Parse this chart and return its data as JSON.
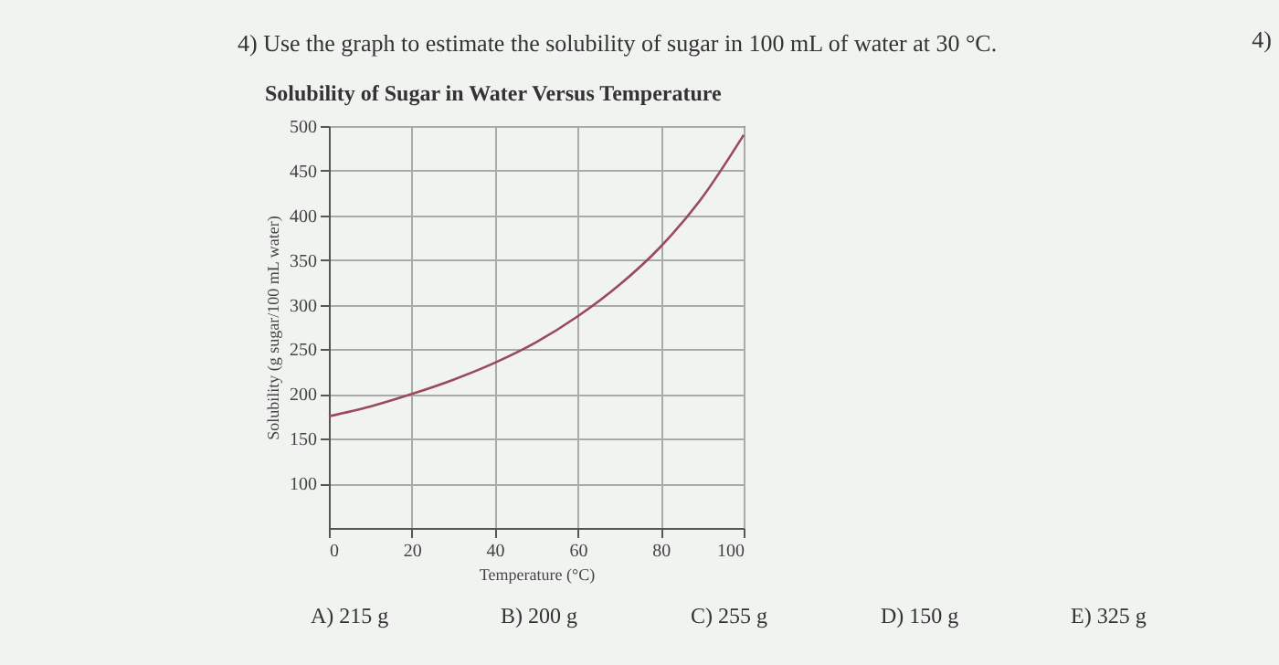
{
  "chart_data": {
    "type": "line",
    "title": "Solubility of Sugar in Water Versus Temperature",
    "xlabel": "Temperature (°C)",
    "ylabel": "Solubility (g sugar/100 mL water)",
    "x": [
      0,
      10,
      20,
      30,
      40,
      50,
      60,
      70,
      80,
      90,
      100
    ],
    "series": [
      {
        "color": "#9a4a5a",
        "values": [
          175,
          186,
          200,
          216,
          235,
          258,
          287,
          322,
          365,
          420,
          490
        ]
      }
    ],
    "xlim": [
      0,
      100
    ],
    "xticks": [
      0,
      20,
      40,
      60,
      80,
      100
    ],
    "ylim": [
      50,
      500
    ],
    "yticks": [
      100,
      150,
      200,
      250,
      300,
      350,
      400,
      450,
      500
    ],
    "grid": true,
    "annotations": [
      "4) Use the graph to estimate the solubility of sugar in 100 mL of water at 30 °C.",
      "4)",
      "A) 215 g",
      "B) 200 g",
      "C) 255 g",
      "D) 150 g",
      "E) 325 g"
    ]
  }
}
